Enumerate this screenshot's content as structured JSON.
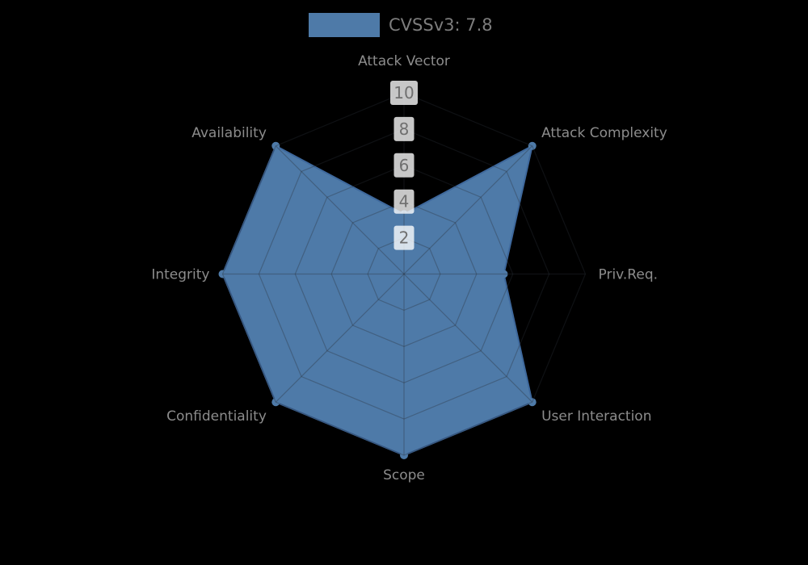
{
  "legend": {
    "label": "CVSSv3: 7.8",
    "swatch_color": "#4e7aa8"
  },
  "chart_data": {
    "type": "radar",
    "title": "CVSSv3: 7.8",
    "axes": [
      "Attack Vector",
      "Attack Complexity",
      "Priv.Req.",
      "User Interaction",
      "Scope",
      "Confidentiality",
      "Integrity",
      "Availability"
    ],
    "series": [
      {
        "name": "CVSSv3: 7.8",
        "values": [
          3.3,
          10,
          5.5,
          10,
          10,
          10,
          10,
          10
        ],
        "color": "#4e7aa8"
      }
    ],
    "radial_ticks": [
      2,
      4,
      6,
      8,
      10
    ],
    "rlim": [
      0,
      10
    ],
    "grid": true,
    "legend_position": "top-center",
    "colors": {
      "fill": "#4e7aa8",
      "outline": "#3e689c",
      "grid": "rgba(42,48,58,0.35)",
      "tick_box": "rgba(255,255,255,0.78)",
      "tick_text": "#6f6f6f",
      "axis_label": "#8c8c8c",
      "background": "#000000"
    }
  }
}
